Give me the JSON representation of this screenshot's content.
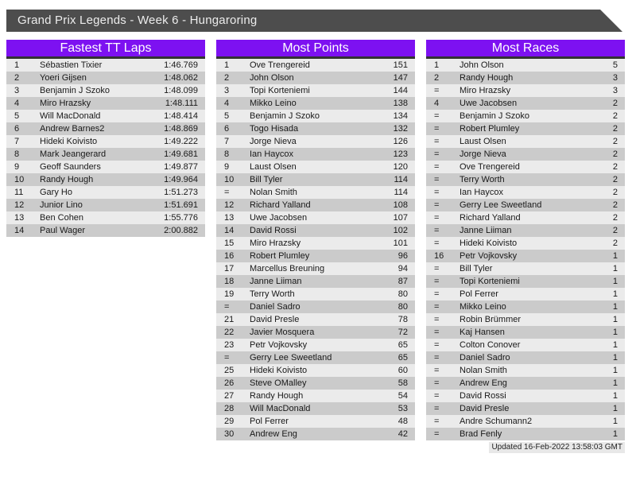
{
  "title_bar": {
    "text": "Grand Prix Legends - Week 6 - Hungaroring"
  },
  "colors": {
    "titlebar_bg": "#4d4d4d",
    "accent_purple": "#7d11f1",
    "header_border": "#333333",
    "row_light": "#ebebeb",
    "row_dark": "#cbcbcb"
  },
  "footer": {
    "updated": "Updated 16-Feb-2022 13:58:03 GMT"
  },
  "tables": [
    {
      "title": "Fastest TT Laps",
      "rows": [
        [
          "1",
          "Sébastien Tixier",
          "1:46.769"
        ],
        [
          "2",
          "Yoeri Gijsen",
          "1:48.062"
        ],
        [
          "3",
          "Benjamin J Szoko",
          "1:48.099"
        ],
        [
          "4",
          "Miro Hrazsky",
          "1:48.111"
        ],
        [
          "5",
          "Will MacDonald",
          "1:48.414"
        ],
        [
          "6",
          "Andrew Barnes2",
          "1:48.869"
        ],
        [
          "7",
          "Hideki Koivisto",
          "1:49.222"
        ],
        [
          "8",
          "Mark Jeangerard",
          "1:49.681"
        ],
        [
          "9",
          "Geoff Saunders",
          "1:49.877"
        ],
        [
          "10",
          "Randy Hough",
          "1:49.964"
        ],
        [
          "11",
          "Gary Ho",
          "1:51.273"
        ],
        [
          "12",
          "Junior Lino",
          "1:51.691"
        ],
        [
          "13",
          "Ben Cohen",
          "1:55.776"
        ],
        [
          "14",
          "Paul Wager",
          "2:00.882"
        ]
      ]
    },
    {
      "title": "Most Points",
      "rows": [
        [
          "1",
          "Ove Trengereid",
          "151"
        ],
        [
          "2",
          "John Olson",
          "147"
        ],
        [
          "3",
          "Topi Korteniemi",
          "144"
        ],
        [
          "4",
          "Mikko Leino",
          "138"
        ],
        [
          "5",
          "Benjamin J Szoko",
          "134"
        ],
        [
          "6",
          "Togo Hisada",
          "132"
        ],
        [
          "7",
          "Jorge Nieva",
          "126"
        ],
        [
          "8",
          "Ian Haycox",
          "123"
        ],
        [
          "9",
          "Laust Olsen",
          "120"
        ],
        [
          "10",
          "Bill Tyler",
          "114"
        ],
        [
          "=",
          "Nolan Smith",
          "114"
        ],
        [
          "12",
          "Richard Yalland",
          "108"
        ],
        [
          "13",
          "Uwe Jacobsen",
          "107"
        ],
        [
          "14",
          "David Rossi",
          "102"
        ],
        [
          "15",
          "Miro Hrazsky",
          "101"
        ],
        [
          "16",
          "Robert Plumley",
          "96"
        ],
        [
          "17",
          "Marcellus Breuning",
          "94"
        ],
        [
          "18",
          "Janne Liiman",
          "87"
        ],
        [
          "19",
          "Terry Worth",
          "80"
        ],
        [
          "=",
          "Daniel Sadro",
          "80"
        ],
        [
          "21",
          "David Presle",
          "78"
        ],
        [
          "22",
          "Javier Mosquera",
          "72"
        ],
        [
          "23",
          "Petr Vojkovsky",
          "65"
        ],
        [
          "=",
          "Gerry Lee Sweetland",
          "65"
        ],
        [
          "25",
          "Hideki Koivisto",
          "60"
        ],
        [
          "26",
          "Steve OMalley",
          "58"
        ],
        [
          "27",
          "Randy Hough",
          "54"
        ],
        [
          "28",
          "Will MacDonald",
          "53"
        ],
        [
          "29",
          "Pol Ferrer",
          "48"
        ],
        [
          "30",
          "Andrew Eng",
          "42"
        ]
      ]
    },
    {
      "title": "Most Races",
      "rows": [
        [
          "1",
          "John Olson",
          "5"
        ],
        [
          "2",
          "Randy Hough",
          "3"
        ],
        [
          "=",
          "Miro Hrazsky",
          "3"
        ],
        [
          "4",
          "Uwe Jacobsen",
          "2"
        ],
        [
          "=",
          "Benjamin J Szoko",
          "2"
        ],
        [
          "=",
          "Robert Plumley",
          "2"
        ],
        [
          "=",
          "Laust Olsen",
          "2"
        ],
        [
          "=",
          "Jorge Nieva",
          "2"
        ],
        [
          "=",
          "Ove Trengereid",
          "2"
        ],
        [
          "=",
          "Terry Worth",
          "2"
        ],
        [
          "=",
          "Ian Haycox",
          "2"
        ],
        [
          "=",
          "Gerry Lee Sweetland",
          "2"
        ],
        [
          "=",
          "Richard Yalland",
          "2"
        ],
        [
          "=",
          "Janne Liiman",
          "2"
        ],
        [
          "=",
          "Hideki Koivisto",
          "2"
        ],
        [
          "16",
          "Petr Vojkovsky",
          "1"
        ],
        [
          "=",
          "Bill Tyler",
          "1"
        ],
        [
          "=",
          "Topi Korteniemi",
          "1"
        ],
        [
          "=",
          "Pol Ferrer",
          "1"
        ],
        [
          "=",
          "Mikko Leino",
          "1"
        ],
        [
          "=",
          "Robin Brümmer",
          "1"
        ],
        [
          "=",
          "Kaj Hansen",
          "1"
        ],
        [
          "=",
          "Colton Conover",
          "1"
        ],
        [
          "=",
          "Daniel Sadro",
          "1"
        ],
        [
          "=",
          "Nolan Smith",
          "1"
        ],
        [
          "=",
          "Andrew Eng",
          "1"
        ],
        [
          "=",
          "David Rossi",
          "1"
        ],
        [
          "=",
          "David Presle",
          "1"
        ],
        [
          "=",
          "Andre Schumann2",
          "1"
        ],
        [
          "=",
          "Brad Fenly",
          "1"
        ]
      ]
    }
  ]
}
